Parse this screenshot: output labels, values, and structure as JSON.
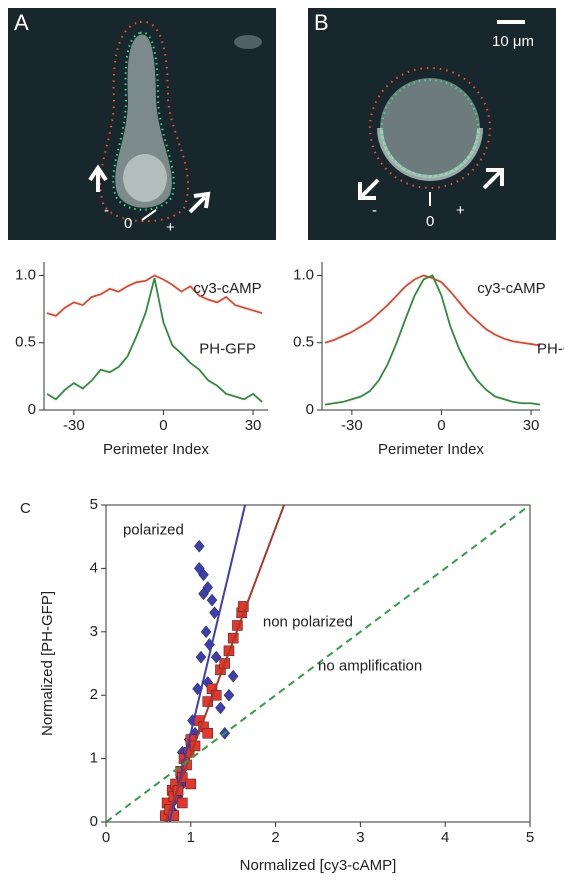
{
  "images": [
    {
      "label": "A",
      "signs": [
        "-",
        "0",
        "+"
      ]
    },
    {
      "label": "B",
      "scale": "10 μm",
      "signs": [
        "-",
        "0",
        "+"
      ]
    }
  ],
  "chart_data": [
    {
      "type": "line",
      "xlabel": "Perimeter Index",
      "x": [
        -39,
        -36,
        -33,
        -30,
        -27,
        -24,
        -21,
        -18,
        -15,
        -12,
        -9,
        -6,
        -3,
        0,
        3,
        6,
        9,
        12,
        15,
        18,
        21,
        24,
        27,
        30,
        33
      ],
      "series": [
        {
          "name": "cy3-cAMP",
          "color": "#e8432a",
          "values": [
            0.72,
            0.7,
            0.76,
            0.8,
            0.78,
            0.84,
            0.86,
            0.9,
            0.88,
            0.92,
            0.95,
            0.96,
            1.0,
            0.97,
            0.93,
            0.88,
            0.92,
            0.85,
            0.82,
            0.8,
            0.84,
            0.78,
            0.76,
            0.74,
            0.72
          ]
        },
        {
          "name": "PH-GFP",
          "color": "#2e8b3a",
          "values": [
            0.12,
            0.08,
            0.15,
            0.2,
            0.16,
            0.22,
            0.3,
            0.28,
            0.32,
            0.4,
            0.55,
            0.72,
            0.98,
            0.65,
            0.48,
            0.42,
            0.35,
            0.3,
            0.22,
            0.18,
            0.12,
            0.1,
            0.08,
            0.12,
            0.06
          ]
        }
      ],
      "xlim": [
        -40,
        35
      ],
      "xticks": [
        -30,
        0,
        30
      ],
      "ylim": [
        0,
        1.1
      ],
      "yticks": [
        0,
        0.5,
        {
          "value": 1,
          "label": "1.0"
        }
      ]
    },
    {
      "type": "line",
      "xlabel": "Perimeter Index",
      "x": [
        -39,
        -36,
        -33,
        -30,
        -27,
        -24,
        -21,
        -18,
        -15,
        -12,
        -9,
        -6,
        -3,
        0,
        3,
        6,
        9,
        12,
        15,
        18,
        21,
        24,
        27,
        30,
        33
      ],
      "series": [
        {
          "name": "cy3-cAMP",
          "color": "#e8432a",
          "values": [
            0.5,
            0.52,
            0.55,
            0.58,
            0.62,
            0.66,
            0.72,
            0.78,
            0.85,
            0.92,
            0.97,
            1.0,
            0.98,
            0.95,
            0.88,
            0.8,
            0.72,
            0.66,
            0.6,
            0.56,
            0.53,
            0.51,
            0.5,
            0.49,
            0.48
          ]
        },
        {
          "name": "PH-GFP",
          "color": "#2e8b3a",
          "values": [
            0.04,
            0.05,
            0.06,
            0.08,
            0.1,
            0.14,
            0.22,
            0.34,
            0.5,
            0.68,
            0.85,
            0.97,
            1.0,
            0.85,
            0.62,
            0.45,
            0.32,
            0.22,
            0.15,
            0.1,
            0.08,
            0.06,
            0.05,
            0.05,
            0.04
          ]
        }
      ],
      "xlim": [
        -40,
        33
      ],
      "xticks": [
        -30,
        0,
        30
      ],
      "ylim": [
        0,
        1.1
      ],
      "yticks": [
        0,
        0.5,
        {
          "value": 1,
          "label": "1.0"
        }
      ]
    },
    {
      "type": "scatter",
      "label": "C",
      "xlabel": "Normalized [cy3-cAMP]",
      "ylabel": "Normalized [PH-GFP]",
      "series": [
        {
          "name": "polarized",
          "color": "#3b3fb0",
          "marker": "diamond",
          "x": [
            0.72,
            0.75,
            0.78,
            0.8,
            0.82,
            0.85,
            0.88,
            0.9,
            0.92,
            0.95,
            0.98,
            1.0,
            1.02,
            1.05,
            1.08,
            1.1,
            1.12,
            1.15,
            1.18,
            1.2,
            1.22,
            1.25,
            1.28,
            1.3,
            1.35,
            1.4,
            1.45,
            1.5,
            1.1,
            1.15,
            1.2,
            0.9
          ],
          "values": [
            0.1,
            0.2,
            0.3,
            0.15,
            0.5,
            0.4,
            0.7,
            0.6,
            1.0,
            0.9,
            1.3,
            1.2,
            1.6,
            1.4,
            2.1,
            4.35,
            2.6,
            3.9,
            3.0,
            3.7,
            2.8,
            3.5,
            3.3,
            2.6,
            1.8,
            1.4,
            2.0,
            2.3,
            4.0,
            3.6,
            2.2,
            1.1
          ]
        },
        {
          "name": "non polarized",
          "color": "#e8352a",
          "marker": "square",
          "x": [
            0.7,
            0.72,
            0.75,
            0.78,
            0.8,
            0.82,
            0.85,
            0.88,
            0.9,
            0.92,
            0.95,
            0.98,
            1.0,
            1.05,
            1.1,
            1.15,
            1.2,
            1.25,
            1.3,
            1.35,
            1.4,
            1.45,
            1.5,
            1.55,
            1.6,
            1.62,
            0.8,
            0.9,
            1.0,
            1.2
          ],
          "values": [
            0.1,
            0.3,
            0.2,
            0.5,
            0.4,
            0.6,
            0.5,
            0.8,
            0.7,
            1.0,
            0.9,
            1.1,
            1.3,
            1.2,
            1.6,
            1.5,
            1.9,
            2.1,
            2.0,
            2.4,
            2.5,
            2.7,
            2.9,
            3.1,
            3.3,
            3.4,
            0.1,
            0.3,
            0.6,
            1.4
          ]
        }
      ],
      "lines": [
        {
          "color": "#3b3fb0",
          "x": [
            0.75,
            1.64
          ],
          "values": [
            0,
            5
          ]
        },
        {
          "color": "#a8382a",
          "x": [
            0.7,
            2.1
          ],
          "values": [
            0,
            5
          ]
        },
        {
          "name": "no amplification",
          "color": "#2ea043",
          "dashed": true,
          "x": [
            0,
            5
          ],
          "values": [
            0,
            5
          ]
        }
      ],
      "xlim": [
        0,
        5
      ],
      "xticks": [
        0,
        1,
        2,
        3,
        4,
        5
      ],
      "ylim": [
        0,
        5
      ],
      "yticks": [
        0,
        1,
        2,
        3,
        4,
        5
      ]
    }
  ]
}
